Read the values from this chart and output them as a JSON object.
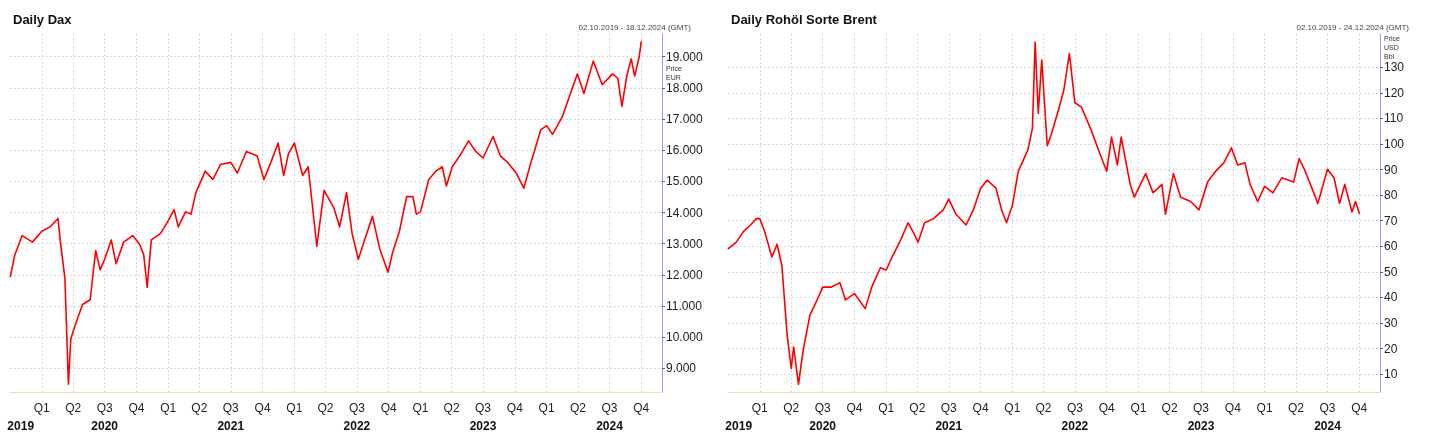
{
  "chart_data": [
    {
      "type": "line",
      "title": "Daily Dax",
      "subtitle": "02.10.2019 - 18.12.2024 (GMT)",
      "ylabel": "Price\nEUR",
      "x": [
        "2019-10-02",
        "2019-10-15",
        "2019-11-05",
        "2019-12-05",
        "2020-01-01",
        "2020-01-25",
        "2020-02-17",
        "2020-02-24",
        "2020-03-08",
        "2020-03-18",
        "2020-03-25",
        "2020-04-08",
        "2020-04-28",
        "2020-05-20",
        "2020-06-05",
        "2020-06-18",
        "2020-07-01",
        "2020-07-20",
        "2020-08-03",
        "2020-08-25",
        "2020-09-20",
        "2020-10-10",
        "2020-10-22",
        "2020-11-01",
        "2020-11-13",
        "2020-12-10",
        "2021-01-01",
        "2021-01-18",
        "2021-01-30",
        "2021-02-20",
        "2021-03-08",
        "2021-03-22",
        "2021-04-18",
        "2021-05-10",
        "2021-06-01",
        "2021-07-01",
        "2021-07-20",
        "2021-08-15",
        "2021-09-15",
        "2021-10-05",
        "2021-10-25",
        "2021-11-15",
        "2021-12-01",
        "2021-12-15",
        "2022-01-01",
        "2022-01-25",
        "2022-02-10",
        "2022-03-07",
        "2022-03-28",
        "2022-04-25",
        "2022-05-12",
        "2022-06-01",
        "2022-06-17",
        "2022-07-05",
        "2022-08-15",
        "2022-09-05",
        "2022-09-29",
        "2022-10-12",
        "2022-11-01",
        "2022-11-22",
        "2022-12-10",
        "2022-12-20",
        "2023-01-01",
        "2023-01-25",
        "2023-02-15",
        "2023-03-05",
        "2023-03-17",
        "2023-04-03",
        "2023-04-25",
        "2023-05-20",
        "2023-06-10",
        "2023-07-01",
        "2023-07-30",
        "2023-08-20",
        "2023-09-10",
        "2023-10-05",
        "2023-10-27",
        "2023-11-15",
        "2023-12-15",
        "2024-01-01",
        "2024-01-18",
        "2024-02-15",
        "2024-03-10",
        "2024-03-30",
        "2024-04-18",
        "2024-05-15",
        "2024-06-10",
        "2024-07-10",
        "2024-07-25",
        "2024-08-06",
        "2024-08-20",
        "2024-09-02",
        "2024-09-12",
        "2024-09-25",
        "2024-10-01"
      ],
      "series": [
        {
          "color": "#ff0000",
          "values": [
            11950,
            12640,
            13260,
            13050,
            13400,
            13540,
            13810,
            13050,
            11880,
            8490,
            9940,
            10430,
            11050,
            11200,
            12780,
            12160,
            12500,
            13120,
            12360,
            13050,
            13260,
            12980,
            12640,
            11600,
            13120,
            13330,
            13740,
            14090,
            13540,
            14020,
            13950,
            14640,
            15330,
            15060,
            15540,
            15610,
            15270,
            15960,
            15820,
            15060,
            15610,
            16230,
            15190,
            15890,
            16230,
            15190,
            15470,
            12910,
            14710,
            14160,
            13540,
            14640,
            13330,
            12500,
            13880,
            12840,
            12080,
            12700,
            13400,
            14510,
            14510,
            13950,
            14020,
            15060,
            15330,
            15470,
            14850,
            15470,
            15820,
            16300,
            15960,
            15750,
            16440,
            15820,
            15610,
            15270,
            14780,
            15540,
            16650,
            16790,
            16510,
            17060,
            17820,
            18450,
            17820,
            18860,
            18100,
            18450,
            18310,
            17410,
            18380,
            18930,
            18380,
            19000,
            19480
          ]
        }
      ],
      "xlim": [
        "2019-10-01",
        "2024-11-30"
      ],
      "xticks": [
        {
          "value": "2020-01-01",
          "label": "Q1"
        },
        {
          "value": "2020-04-01",
          "label": "Q2"
        },
        {
          "value": "2020-07-01",
          "label": "Q3"
        },
        {
          "value": "2020-10-01",
          "label": "Q4"
        },
        {
          "value": "2021-01-01",
          "label": "Q1"
        },
        {
          "value": "2021-04-01",
          "label": "Q2"
        },
        {
          "value": "2021-07-01",
          "label": "Q3"
        },
        {
          "value": "2021-10-01",
          "label": "Q4"
        },
        {
          "value": "2022-01-01",
          "label": "Q1"
        },
        {
          "value": "2022-04-01",
          "label": "Q2"
        },
        {
          "value": "2022-07-01",
          "label": "Q3"
        },
        {
          "value": "2022-10-01",
          "label": "Q4"
        },
        {
          "value": "2023-01-01",
          "label": "Q1"
        },
        {
          "value": "2023-04-01",
          "label": "Q2"
        },
        {
          "value": "2023-07-01",
          "label": "Q3"
        },
        {
          "value": "2023-10-01",
          "label": "Q4"
        },
        {
          "value": "2024-01-01",
          "label": "Q1"
        },
        {
          "value": "2024-04-01",
          "label": "Q2"
        },
        {
          "value": "2024-07-01",
          "label": "Q3"
        },
        {
          "value": "2024-10-01",
          "label": "Q4"
        }
      ],
      "x2lim": [
        "2019-10-01",
        "2024-11-30"
      ],
      "x2ticks": [
        {
          "value": "2019-11-01",
          "label": "2019"
        },
        {
          "value": "2020-07-01",
          "label": "2020"
        },
        {
          "value": "2021-07-01",
          "label": "2021"
        },
        {
          "value": "2022-07-01",
          "label": "2022"
        },
        {
          "value": "2023-07-01",
          "label": "2023"
        },
        {
          "value": "2024-07-01",
          "label": "2024"
        }
      ],
      "ylim": [
        8240,
        19730
      ],
      "yticks": [
        {
          "value": 9000,
          "label": "9.000"
        },
        {
          "value": 10000,
          "label": "10.000"
        },
        {
          "value": 11000,
          "label": "11.000"
        },
        {
          "value": 12000,
          "label": "12.000"
        },
        {
          "value": 13000,
          "label": "13.000"
        },
        {
          "value": 14000,
          "label": "14.000"
        },
        {
          "value": 15000,
          "label": "15.000"
        },
        {
          "value": 16000,
          "label": "16.000"
        },
        {
          "value": 17000,
          "label": "17.000"
        },
        {
          "value": 18000,
          "label": "18.000"
        },
        {
          "value": 19000,
          "label": "19.000"
        }
      ],
      "grid": true
    },
    {
      "type": "line",
      "title": "Daily Rohöl Sorte Brent",
      "subtitle": "02.10.2019 - 24.12.2024 (GMT)",
      "ylabel": "Price\nUSD\nBbl",
      "x": [
        "2019-10-02",
        "2019-10-25",
        "2019-11-15",
        "2019-12-05",
        "2019-12-22",
        "2020-01-01",
        "2020-01-15",
        "2020-02-05",
        "2020-02-20",
        "2020-03-05",
        "2020-03-20",
        "2020-04-01",
        "2020-04-08",
        "2020-04-22",
        "2020-05-05",
        "2020-05-25",
        "2020-06-15",
        "2020-07-01",
        "2020-07-25",
        "2020-08-20",
        "2020-09-05",
        "2020-10-01",
        "2020-11-01",
        "2020-11-20",
        "2020-12-15",
        "2021-01-01",
        "2021-01-18",
        "2021-02-12",
        "2021-03-05",
        "2021-03-22",
        "2021-04-03",
        "2021-04-22",
        "2021-05-18",
        "2021-06-15",
        "2021-07-01",
        "2021-07-22",
        "2021-08-20",
        "2021-09-10",
        "2021-10-01",
        "2021-10-20",
        "2021-11-15",
        "2021-12-01",
        "2021-12-15",
        "2022-01-01",
        "2022-01-18",
        "2022-02-15",
        "2022-02-28",
        "2022-03-08",
        "2022-03-17",
        "2022-03-27",
        "2022-04-12",
        "2022-04-25",
        "2022-05-15",
        "2022-05-30",
        "2022-06-15",
        "2022-07-01",
        "2022-07-20",
        "2022-08-15",
        "2022-09-12",
        "2022-10-01",
        "2022-10-15",
        "2022-11-01",
        "2022-11-12",
        "2022-12-08",
        "2022-12-20",
        "2023-01-01",
        "2023-01-22",
        "2023-02-12",
        "2023-03-10",
        "2023-03-20",
        "2023-04-12",
        "2023-05-03",
        "2023-06-01",
        "2023-06-25",
        "2023-07-20",
        "2023-08-12",
        "2023-09-05",
        "2023-09-27",
        "2023-10-15",
        "2023-11-05",
        "2023-11-20",
        "2023-12-12",
        "2024-01-01",
        "2024-01-25",
        "2024-02-20",
        "2024-03-25",
        "2024-04-10",
        "2024-04-25",
        "2024-05-15",
        "2024-06-03",
        "2024-07-01",
        "2024-07-20",
        "2024-08-05",
        "2024-08-20",
        "2024-09-10",
        "2024-09-20",
        "2024-10-01"
      ],
      "series": [
        {
          "color": "#ff0000",
          "values": [
            59.1,
            61.6,
            65.8,
            68.3,
            70.8,
            70.8,
            65.8,
            55.8,
            60.8,
            52.4,
            25.6,
            12.2,
            20.6,
            6,
            18.9,
            33.1,
            39,
            44,
            44,
            45.7,
            39,
            41.5,
            35.6,
            44,
            51.6,
            50.7,
            55.8,
            62.5,
            69.2,
            65,
            61.6,
            69.2,
            70.8,
            74.2,
            78.4,
            72.5,
            68.3,
            74.2,
            82.6,
            85.9,
            82.6,
            74.2,
            69.2,
            75.9,
            89.3,
            97.7,
            106.1,
            139.9,
            111.9,
            132.8,
            99.3,
            104.4,
            113.6,
            121.1,
            135.4,
            116.1,
            114.4,
            106.1,
            96,
            89.3,
            102.7,
            91.8,
            102.7,
            84.2,
            79.2,
            82.6,
            88.4,
            80.9,
            84.2,
            72.5,
            88.4,
            79.2,
            77.5,
            74.2,
            85.1,
            89.3,
            92.6,
            98.5,
            91.8,
            92.6,
            84.2,
            77.5,
            83.4,
            80.9,
            86.8,
            85.1,
            94.3,
            90.1,
            83.4,
            76.7,
            90.1,
            86.8,
            76.7,
            84.2,
            73.4,
            77.5,
            72.9
          ]
        }
      ],
      "xlim": [
        "2019-10-01",
        "2024-11-30"
      ],
      "xticks": [
        {
          "value": "2020-01-01",
          "label": "Q1"
        },
        {
          "value": "2020-04-01",
          "label": "Q2"
        },
        {
          "value": "2020-07-01",
          "label": "Q3"
        },
        {
          "value": "2020-10-01",
          "label": "Q4"
        },
        {
          "value": "2021-01-01",
          "label": "Q1"
        },
        {
          "value": "2021-04-01",
          "label": "Q2"
        },
        {
          "value": "2021-07-01",
          "label": "Q3"
        },
        {
          "value": "2021-10-01",
          "label": "Q4"
        },
        {
          "value": "2022-01-01",
          "label": "Q1"
        },
        {
          "value": "2022-04-01",
          "label": "Q2"
        },
        {
          "value": "2022-07-01",
          "label": "Q3"
        },
        {
          "value": "2022-10-01",
          "label": "Q4"
        },
        {
          "value": "2023-01-01",
          "label": "Q1"
        },
        {
          "value": "2023-04-01",
          "label": "Q2"
        },
        {
          "value": "2023-07-01",
          "label": "Q3"
        },
        {
          "value": "2023-10-01",
          "label": "Q4"
        },
        {
          "value": "2024-01-01",
          "label": "Q1"
        },
        {
          "value": "2024-04-01",
          "label": "Q2"
        },
        {
          "value": "2024-07-01",
          "label": "Q3"
        },
        {
          "value": "2024-10-01",
          "label": "Q4"
        }
      ],
      "x2lim": [
        "2019-10-01",
        "2024-11-30"
      ],
      "x2ticks": [
        {
          "value": "2019-11-01",
          "label": "2019"
        },
        {
          "value": "2020-07-01",
          "label": "2020"
        },
        {
          "value": "2021-07-01",
          "label": "2021"
        },
        {
          "value": "2022-07-01",
          "label": "2022"
        },
        {
          "value": "2023-07-01",
          "label": "2023"
        },
        {
          "value": "2024-07-01",
          "label": "2024"
        }
      ],
      "ylim": [
        3,
        143
      ],
      "yticks": [
        10,
        20,
        30,
        40,
        50,
        60,
        70,
        80,
        90,
        100,
        110,
        120,
        130
      ],
      "grid": true
    }
  ]
}
